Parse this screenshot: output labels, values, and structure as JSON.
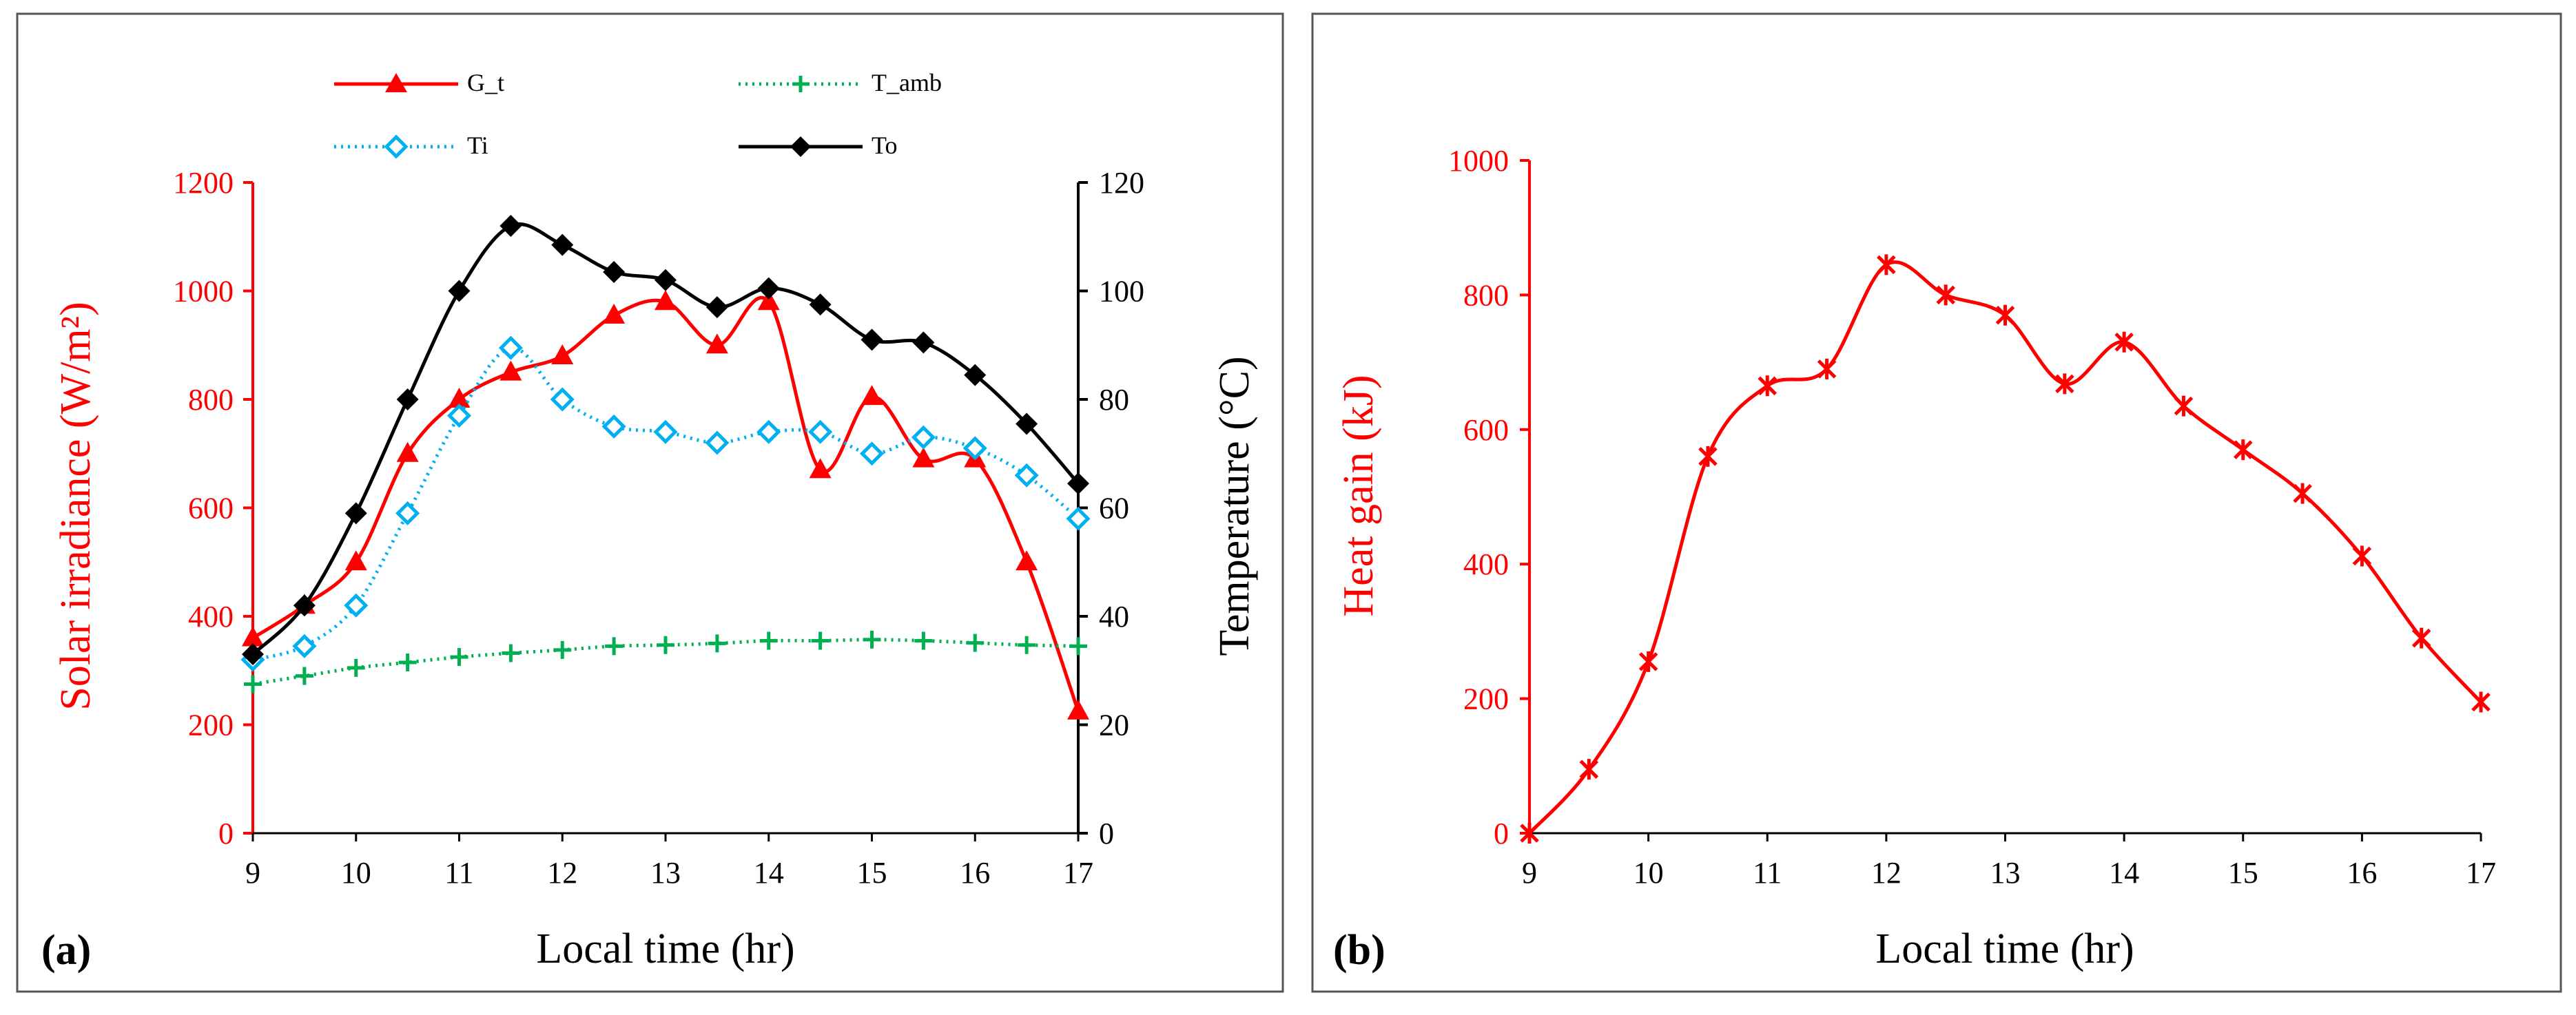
{
  "colors": {
    "red": "#ff0000",
    "black": "#000000",
    "cyan": "#00b0f0",
    "green": "#00b050",
    "frame": "#555555"
  },
  "panel_labels": {
    "a": "(a)",
    "b": "(b)"
  },
  "chart_data": [
    {
      "id": "a",
      "type": "line",
      "xlabel": "Local time (hr)",
      "ylabel_left": "Solar irradiance (W/m²)",
      "ylabel_right": "Temperature (°C)",
      "x": [
        9,
        9.5,
        10,
        10.5,
        11,
        11.5,
        12,
        12.5,
        13,
        13.5,
        14,
        14.5,
        15,
        15.5,
        16,
        16.5,
        17
      ],
      "x_ticks": [
        "9",
        "10",
        "11",
        "12",
        "13",
        "14",
        "15",
        "16",
        "17"
      ],
      "xlim": [
        9,
        17
      ],
      "ylim_left": [
        0,
        1200
      ],
      "ylim_right": [
        0,
        120
      ],
      "y_ticks_left": [
        "0",
        "200",
        "400",
        "600",
        "800",
        "1000",
        "1200"
      ],
      "y_ticks_right": [
        "0",
        "20",
        "40",
        "60",
        "80",
        "100",
        "120"
      ],
      "series": [
        {
          "name": "G_t",
          "axis": "left",
          "color": "#ff0000",
          "style": "solid",
          "marker": "triangle",
          "values": [
            360,
            420,
            500,
            700,
            800,
            850,
            880,
            955,
            980,
            900,
            980,
            670,
            805,
            690,
            690,
            500,
            225
          ]
        },
        {
          "name": "T_amb",
          "axis": "right",
          "color": "#00b050",
          "style": "dotted",
          "marker": "plus",
          "values": [
            27.5,
            29,
            30.5,
            31.5,
            32.5,
            33.2,
            33.8,
            34.5,
            34.7,
            35,
            35.5,
            35.5,
            35.7,
            35.5,
            35.1,
            34.7,
            34.5
          ]
        },
        {
          "name": "Ti",
          "axis": "right",
          "color": "#00b0f0",
          "style": "dotted",
          "marker": "diamond-open",
          "values": [
            32,
            34.5,
            42,
            59,
            77,
            89.5,
            80,
            75,
            74,
            72,
            74,
            74,
            70,
            73,
            71,
            66,
            58
          ]
        },
        {
          "name": "To",
          "axis": "right",
          "color": "#000000",
          "style": "solid",
          "marker": "diamond",
          "values": [
            33,
            42,
            59,
            80,
            100,
            112,
            108.5,
            103.5,
            102,
            97,
            100.5,
            97.5,
            91,
            90.5,
            84.5,
            75.5,
            64.5
          ]
        }
      ]
    },
    {
      "id": "b",
      "type": "line",
      "xlabel": "Local time (hr)",
      "ylabel": "Heat gain (kJ)",
      "x": [
        9,
        9.5,
        10,
        10.5,
        11,
        11.5,
        12,
        12.5,
        13,
        13.5,
        14,
        14.5,
        15,
        15.5,
        16,
        16.5,
        17
      ],
      "x_ticks": [
        "9",
        "10",
        "11",
        "12",
        "13",
        "14",
        "15",
        "16",
        "17"
      ],
      "xlim": [
        9,
        17
      ],
      "ylim": [
        0,
        1000
      ],
      "y_ticks": [
        "0",
        "200",
        "400",
        "600",
        "800",
        "1000"
      ],
      "series": [
        {
          "name": "Heat gain",
          "color": "#ff0000",
          "style": "smooth",
          "marker": "asterisk",
          "values": [
            0,
            95,
            255,
            560,
            665,
            690,
            845,
            800,
            770,
            668,
            730,
            635,
            570,
            505,
            412,
            290,
            195
          ]
        }
      ]
    }
  ]
}
